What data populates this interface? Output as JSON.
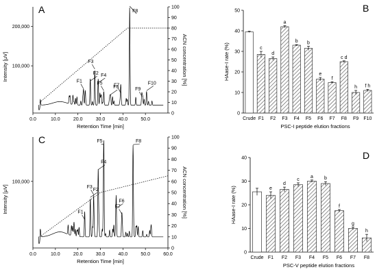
{
  "chart_data": [
    {
      "type": "line",
      "panel_label": "A",
      "xlabel": "Retention Time [min]",
      "ylabel": "Intensity [μV]",
      "y2label": "ACN concentration [%]",
      "xlim": [
        0,
        60
      ],
      "ylim": [
        -20000,
        250000
      ],
      "y2lim": [
        0,
        100
      ],
      "xticks": [
        "0.0",
        "10.0",
        "20.0",
        "30.0",
        "40.0",
        "50.0"
      ],
      "yticks": [
        "100,000",
        "200,000"
      ],
      "y2ticks": [
        "0",
        "10",
        "20",
        "30",
        "40",
        "50",
        "60",
        "70",
        "80",
        "90",
        "100"
      ],
      "gradient": {
        "name": "ACN gradient",
        "x": [
          3,
          42,
          60
        ],
        "y": [
          10,
          80,
          80
        ]
      },
      "peaks": [
        {
          "label": "F1",
          "x": 22.5,
          "height": 40000
        },
        {
          "label": "F2",
          "x": 25.5,
          "height": 60000
        },
        {
          "label": "F3",
          "x": 27.5,
          "height": 90000
        },
        {
          "label": "F4",
          "x": 29.0,
          "height": 55000
        },
        {
          "label": "F5",
          "x": 31.5,
          "height": 35000
        },
        {
          "label": "F6",
          "x": 34.5,
          "height": 25000
        },
        {
          "label": "F7",
          "x": 39.0,
          "height": 30000
        },
        {
          "label": "F8",
          "x": 43.0,
          "height": 250000
        },
        {
          "label": "F9",
          "x": 48.5,
          "height": 20000
        },
        {
          "label": "F10",
          "x": 50.5,
          "height": 35000
        }
      ]
    },
    {
      "type": "bar",
      "panel_label": "B",
      "xlabel": "PSC-I  peptide elution fractions",
      "ylabel": "HAase-I rate (%)",
      "categories": [
        "Crude",
        "F1",
        "F2",
        "F3",
        "F4",
        "F5",
        "F6",
        "F7",
        "F8",
        "F9",
        "F10"
      ],
      "values": [
        39.5,
        28.5,
        26.5,
        42,
        33,
        31.5,
        16.5,
        14.8,
        25,
        10,
        11
      ],
      "errors": [
        0.3,
        1.5,
        0.8,
        0.5,
        0.3,
        1.0,
        0.8,
        0.4,
        0.4,
        1.0,
        0.5
      ],
      "letters": [
        "",
        "c",
        "d",
        "a",
        "b",
        "b",
        "e",
        "f",
        "c d",
        "h",
        "f h"
      ],
      "ylim": [
        0,
        50
      ],
      "yticks": [
        "0",
        "10",
        "20",
        "30",
        "40",
        "50"
      ]
    },
    {
      "type": "line",
      "panel_label": "C",
      "xlabel": "Retention Time [min]",
      "ylabel": "Intensity [μV]",
      "y2label": "ACN concentration [%]",
      "xlim": [
        0,
        60
      ],
      "ylim": [
        -20000,
        180000
      ],
      "y2lim": [
        0,
        100
      ],
      "xticks": [
        "0.0",
        "10.0",
        "20.0",
        "30.0",
        "40.0",
        "50.0",
        "60.0"
      ],
      "yticks": [
        "100,000"
      ],
      "y2ticks": [
        "0",
        "10",
        "20",
        "30",
        "40",
        "50",
        "60",
        "70",
        "80",
        "90",
        "100"
      ],
      "gradient": {
        "name": "ACN gradient",
        "x": [
          3,
          30,
          60
        ],
        "y": [
          10,
          50,
          65
        ]
      },
      "peaks": [
        {
          "label": "F1",
          "x": 23.0,
          "height": 30000
        },
        {
          "label": "F2",
          "x": 25.5,
          "height": 70000
        },
        {
          "label": "F3",
          "x": 27.0,
          "height": 75000
        },
        {
          "label": "F4",
          "x": 29.0,
          "height": 120000
        },
        {
          "label": "F5",
          "x": 31.5,
          "height": 165000
        },
        {
          "label": "F6",
          "x": 37.0,
          "height": 50000
        },
        {
          "label": "F7",
          "x": 39.5,
          "height": 40000
        },
        {
          "label": "F8",
          "x": 44.5,
          "height": 165000
        }
      ]
    },
    {
      "type": "bar",
      "panel_label": "D",
      "xlabel": "PSC-V  peptide elution fractions",
      "ylabel": "HAase-I rate (%)",
      "categories": [
        "Crude",
        "F1",
        "F2",
        "F3",
        "F4",
        "F5",
        "F6",
        "F7",
        "F8"
      ],
      "values": [
        25.5,
        24,
        26.5,
        28.5,
        30,
        29,
        17.5,
        10,
        6
      ],
      "errors": [
        1.5,
        1.5,
        1.0,
        0.8,
        0.5,
        0.8,
        0.5,
        0.6,
        1.5
      ],
      "letters": [
        "",
        "e",
        "d",
        "c",
        "a",
        "b",
        "f",
        "g",
        "h"
      ],
      "ylim": [
        0,
        40
      ],
      "yticks": [
        "0",
        "10",
        "20",
        "30",
        "40"
      ]
    }
  ]
}
